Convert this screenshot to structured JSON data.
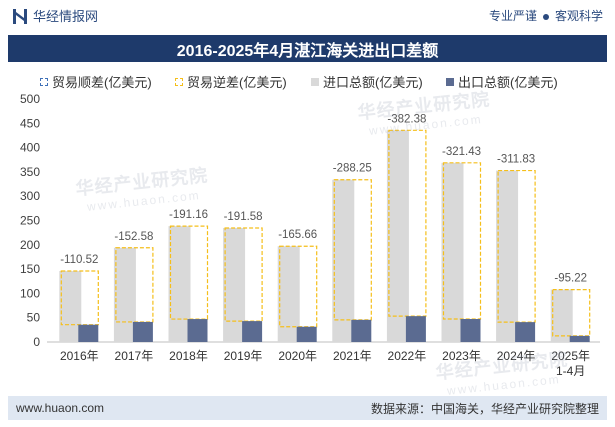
{
  "header": {
    "brand": "华经情报网",
    "slogan": [
      "专业严谨",
      "客观科学"
    ]
  },
  "colors": {
    "title_bar": "#1e3a6b",
    "brand_text": "#2b4a7e",
    "import": "#d9d9d9",
    "export": "#5b6b91",
    "deficit": "#f5bf1a",
    "surplus": "#3f71b8",
    "axis": "#bfbfbf",
    "footer_bg": "#dfe7f2"
  },
  "chart_data": {
    "type": "bar",
    "title": "2016-2025年4月湛江海关进出口差额",
    "categories": [
      "2016年",
      "2017年",
      "2018年",
      "2019年",
      "2020年",
      "2021年",
      "2022年",
      "2023年",
      "2024年",
      "2025年\n1-4月"
    ],
    "series": [
      {
        "name": "贸易顺差(亿美元)",
        "values": [
          null,
          null,
          null,
          null,
          null,
          null,
          null,
          null,
          null,
          null
        ]
      },
      {
        "name": "贸易逆差(亿美元)",
        "values": [
          -110.52,
          -152.58,
          -191.16,
          -191.58,
          -165.66,
          -288.25,
          -382.38,
          -321.43,
          -311.83,
          -95.22
        ]
      },
      {
        "name": "进口总额(亿美元)",
        "values": [
          146.1,
          193.9,
          238.4,
          234.6,
          197.1,
          333.9,
          435.6,
          368.7,
          352.7,
          107.8
        ]
      },
      {
        "name": "出口总额(亿美元)",
        "values": [
          35.6,
          41.3,
          47.2,
          43.0,
          31.4,
          45.6,
          53.2,
          47.3,
          40.9,
          12.6
        ]
      }
    ],
    "ylim": [
      0,
      500
    ],
    "yticks": [
      0,
      50,
      100,
      150,
      200,
      250,
      300,
      350,
      400,
      450,
      500
    ],
    "grid": false,
    "legend_position": "top"
  },
  "footer": {
    "website": "www.huaon.com",
    "source": "数据来源：中国海关，华经产业研究院整理"
  },
  "watermark": {
    "text": "华经产业研究院",
    "url": "www.huaon.com"
  }
}
